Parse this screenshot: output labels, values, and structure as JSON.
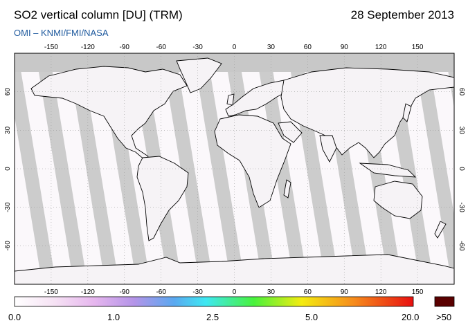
{
  "header": {
    "title": "SO2 vertical column [DU] (TRM)",
    "date": "28 September 2013",
    "credit": "OMI  –  KNMI/FMI/NASA"
  },
  "map": {
    "projection": "equirectangular",
    "lon_range": [
      -180,
      180
    ],
    "lat_range": [
      -90,
      90
    ],
    "lon_ticks": [
      -150,
      -120,
      -90,
      -60,
      -30,
      0,
      30,
      60,
      90,
      120,
      150
    ],
    "lat_ticks": [
      60,
      30,
      0,
      -30,
      -60
    ],
    "gridlines": "dotted",
    "orbit_swath_color": "#c8c8c8",
    "polar_nodata_color": "#c8c8c8",
    "land_outline_color": "#000000"
  },
  "colorbar": {
    "labels": [
      "0.0",
      "1.0",
      "2.5",
      "5.0",
      "20.0",
      ">50"
    ],
    "colors": [
      "#ffffff",
      "#f6d8f4",
      "#d8a2ee",
      "#9a86e4",
      "#3ee8f2",
      "#48f23c",
      "#f4ec10",
      "#f68c1c",
      "#e81010",
      "#5a0000"
    ]
  }
}
